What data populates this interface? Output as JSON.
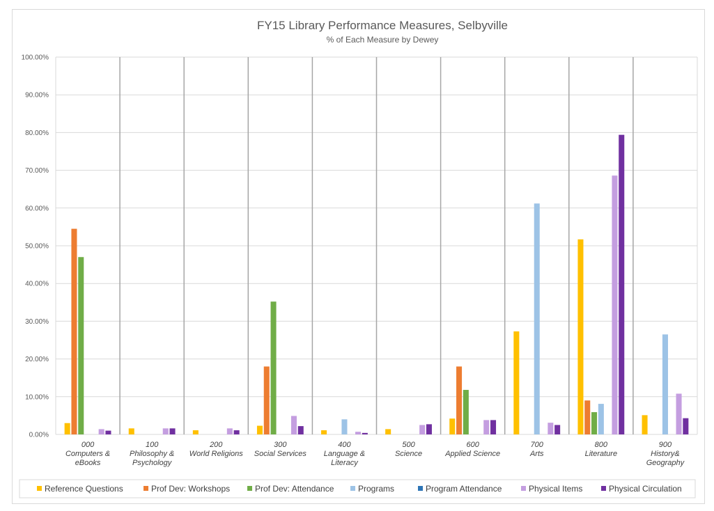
{
  "chart_data": {
    "type": "bar",
    "title": "FY15 Library Performance Measures, Selbyville",
    "subtitle": "% of Each Measure by Dewey",
    "xlabel": "",
    "ylabel": "",
    "ylim": [
      0,
      100
    ],
    "yticks": [
      "0.00%",
      "10.00%",
      "20.00%",
      "30.00%",
      "40.00%",
      "50.00%",
      "60.00%",
      "70.00%",
      "80.00%",
      "90.00%",
      "100.00%"
    ],
    "grid": true,
    "legend_position": "bottom",
    "categories": [
      [
        "000",
        "Computers &",
        "eBooks"
      ],
      [
        "100",
        "Philosophy &",
        "Psychology"
      ],
      [
        "200",
        "World Religions"
      ],
      [
        "300",
        "Social Services"
      ],
      [
        "400",
        "Language &",
        "Literacy"
      ],
      [
        "500",
        "Science"
      ],
      [
        "600",
        "Applied Science"
      ],
      [
        "700",
        "Arts"
      ],
      [
        "800",
        "Literature"
      ],
      [
        "900",
        "History&",
        "Geography"
      ]
    ],
    "series": [
      {
        "name": "Reference Questions",
        "color": "#ffc000",
        "values": [
          3.0,
          1.6,
          1.1,
          2.3,
          1.1,
          1.4,
          4.2,
          27.3,
          51.7,
          5.1
        ]
      },
      {
        "name": "Prof Dev: Workshops",
        "color": "#ed7d31",
        "values": [
          54.5,
          0,
          0,
          18.0,
          0,
          0,
          18.0,
          0,
          9.0,
          0
        ]
      },
      {
        "name": "Prof Dev: Attendance",
        "color": "#70ad47",
        "values": [
          47.0,
          0,
          0,
          35.2,
          0,
          0,
          11.8,
          0,
          5.9,
          0
        ]
      },
      {
        "name": "Programs",
        "color": "#9dc3e6",
        "values": [
          0,
          0,
          0,
          0,
          4.0,
          0,
          0,
          61.2,
          8.1,
          26.5
        ]
      },
      {
        "name": "Program Attendance",
        "color": "#2e75b6",
        "values": [
          0,
          0,
          0,
          0,
          0,
          0,
          0,
          0,
          0,
          0
        ]
      },
      {
        "name": "Physical Items",
        "color": "#c49ee0",
        "values": [
          1.4,
          1.6,
          1.6,
          4.9,
          0.7,
          2.5,
          3.8,
          3.1,
          68.6,
          10.8
        ]
      },
      {
        "name": "Physical Circulation",
        "color": "#7030a0",
        "values": [
          1.0,
          1.6,
          1.1,
          2.2,
          0.4,
          2.7,
          3.8,
          2.5,
          79.4,
          4.3
        ]
      }
    ]
  }
}
